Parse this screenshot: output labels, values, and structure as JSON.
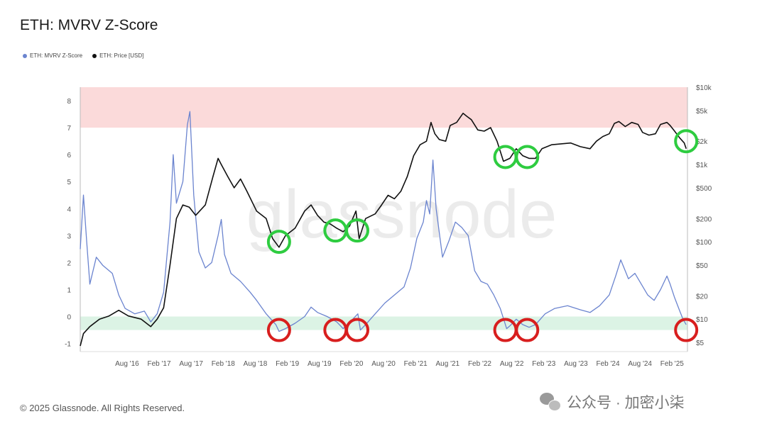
{
  "title": "ETH: MVRV Z-Score",
  "legend": [
    {
      "label": "ETH: MVRV Z-Score",
      "color": "#6b84cf"
    },
    {
      "label": "ETH: Price [USD]",
      "color": "#111111"
    }
  ],
  "footer": "© 2025 Glassnode. All Rights Reserved.",
  "watermark": "glassnode",
  "wechat_label": "公众号 · 加密小柒",
  "colors": {
    "zscore": "#6b84cf",
    "price": "#111111",
    "red_band": "#fbdada",
    "green_band": "#dcf3e5",
    "green_circle": "#2ecc40",
    "red_circle": "#d81e1e"
  },
  "chart_data": {
    "type": "line",
    "title": "ETH: MVRV Z-Score",
    "x_ticks": [
      "Aug '16",
      "Feb '17",
      "Aug '17",
      "Feb '18",
      "Aug '18",
      "Feb '19",
      "Aug '19",
      "Feb '20",
      "Aug '20",
      "Feb '21",
      "Aug '21",
      "Feb '22",
      "Aug '22",
      "Feb '23",
      "Aug '23",
      "Feb '24",
      "Aug '24",
      "Feb '25"
    ],
    "x_range": [
      2015.85,
      2025.32
    ],
    "y_left": {
      "ticks": [
        -1,
        0,
        1,
        2,
        3,
        4,
        5,
        6,
        7,
        8
      ],
      "range": [
        -1.3,
        8.5
      ]
    },
    "y_right": {
      "scale": "log",
      "ticks": [
        "$5",
        "$10",
        "$20",
        "$50",
        "$100",
        "$200",
        "$500",
        "$1k",
        "$2k",
        "$5k",
        "$10k"
      ],
      "tick_values": [
        5,
        10,
        20,
        50,
        100,
        200,
        500,
        1000,
        2000,
        5000,
        10000
      ],
      "range": [
        3.8,
        10000
      ]
    },
    "bands": [
      {
        "from": 7,
        "to": 8.5,
        "color": "#fbdada"
      },
      {
        "from": -0.5,
        "to": 0,
        "color": "#dcf3e5"
      }
    ],
    "series": [
      {
        "name": "ETH: MVRV Z-Score",
        "axis": "left",
        "points": [
          [
            2015.85,
            2.5
          ],
          [
            2015.9,
            4.5
          ],
          [
            2015.95,
            2.8
          ],
          [
            2016.0,
            1.2
          ],
          [
            2016.1,
            2.2
          ],
          [
            2016.2,
            1.9
          ],
          [
            2016.35,
            1.6
          ],
          [
            2016.45,
            0.8
          ],
          [
            2016.55,
            0.3
          ],
          [
            2016.7,
            0.1
          ],
          [
            2016.85,
            0.2
          ],
          [
            2016.95,
            -0.2
          ],
          [
            2017.05,
            0.1
          ],
          [
            2017.15,
            0.9
          ],
          [
            2017.25,
            3.5
          ],
          [
            2017.3,
            6.0
          ],
          [
            2017.35,
            4.2
          ],
          [
            2017.45,
            5.0
          ],
          [
            2017.52,
            7.1
          ],
          [
            2017.56,
            7.6
          ],
          [
            2017.62,
            4.5
          ],
          [
            2017.7,
            2.4
          ],
          [
            2017.8,
            1.8
          ],
          [
            2017.9,
            2.0
          ],
          [
            2018.0,
            3.0
          ],
          [
            2018.05,
            3.6
          ],
          [
            2018.1,
            2.3
          ],
          [
            2018.2,
            1.6
          ],
          [
            2018.35,
            1.3
          ],
          [
            2018.5,
            0.9
          ],
          [
            2018.6,
            0.6
          ],
          [
            2018.75,
            0.1
          ],
          [
            2018.9,
            -0.3
          ],
          [
            2018.95,
            -0.55
          ],
          [
            2019.05,
            -0.45
          ],
          [
            2019.2,
            -0.25
          ],
          [
            2019.35,
            0.0
          ],
          [
            2019.45,
            0.35
          ],
          [
            2019.55,
            0.15
          ],
          [
            2019.7,
            0.0
          ],
          [
            2019.85,
            -0.2
          ],
          [
            2019.95,
            -0.45
          ],
          [
            2020.1,
            -0.1
          ],
          [
            2020.18,
            0.1
          ],
          [
            2020.22,
            -0.5
          ],
          [
            2020.3,
            -0.3
          ],
          [
            2020.45,
            0.1
          ],
          [
            2020.6,
            0.5
          ],
          [
            2020.75,
            0.8
          ],
          [
            2020.9,
            1.1
          ],
          [
            2021.0,
            1.8
          ],
          [
            2021.1,
            2.9
          ],
          [
            2021.2,
            3.5
          ],
          [
            2021.25,
            4.3
          ],
          [
            2021.3,
            3.8
          ],
          [
            2021.35,
            5.8
          ],
          [
            2021.4,
            4.0
          ],
          [
            2021.5,
            2.2
          ],
          [
            2021.6,
            2.8
          ],
          [
            2021.7,
            3.5
          ],
          [
            2021.8,
            3.3
          ],
          [
            2021.9,
            3.0
          ],
          [
            2022.0,
            1.7
          ],
          [
            2022.1,
            1.3
          ],
          [
            2022.2,
            1.2
          ],
          [
            2022.3,
            0.8
          ],
          [
            2022.4,
            0.3
          ],
          [
            2022.5,
            -0.45
          ],
          [
            2022.55,
            -0.35
          ],
          [
            2022.65,
            -0.1
          ],
          [
            2022.75,
            -0.3
          ],
          [
            2022.85,
            -0.4
          ],
          [
            2022.95,
            -0.3
          ],
          [
            2023.1,
            0.1
          ],
          [
            2023.25,
            0.3
          ],
          [
            2023.45,
            0.4
          ],
          [
            2023.65,
            0.25
          ],
          [
            2023.8,
            0.15
          ],
          [
            2023.95,
            0.4
          ],
          [
            2024.1,
            0.8
          ],
          [
            2024.2,
            1.5
          ],
          [
            2024.28,
            2.1
          ],
          [
            2024.4,
            1.4
          ],
          [
            2024.5,
            1.6
          ],
          [
            2024.6,
            1.2
          ],
          [
            2024.7,
            0.8
          ],
          [
            2024.8,
            0.6
          ],
          [
            2024.9,
            1.0
          ],
          [
            2025.0,
            1.5
          ],
          [
            2025.05,
            1.2
          ],
          [
            2025.12,
            0.7
          ],
          [
            2025.2,
            0.2
          ],
          [
            2025.25,
            -0.1
          ],
          [
            2025.3,
            -0.3
          ]
        ]
      },
      {
        "name": "ETH: Price [USD]",
        "axis": "right",
        "points": [
          [
            2015.85,
            4.5
          ],
          [
            2015.9,
            6.5
          ],
          [
            2016.0,
            8.0
          ],
          [
            2016.15,
            10.0
          ],
          [
            2016.3,
            11.0
          ],
          [
            2016.45,
            13.0
          ],
          [
            2016.6,
            11.0
          ],
          [
            2016.8,
            10.0
          ],
          [
            2016.95,
            8.0
          ],
          [
            2017.05,
            10.0
          ],
          [
            2017.15,
            14.0
          ],
          [
            2017.25,
            50.0
          ],
          [
            2017.35,
            200.0
          ],
          [
            2017.45,
            300.0
          ],
          [
            2017.55,
            280.0
          ],
          [
            2017.65,
            220.0
          ],
          [
            2017.8,
            300.0
          ],
          [
            2017.92,
            700.0
          ],
          [
            2018.0,
            1200.0
          ],
          [
            2018.05,
            1000.0
          ],
          [
            2018.15,
            700.0
          ],
          [
            2018.25,
            500.0
          ],
          [
            2018.35,
            650.0
          ],
          [
            2018.45,
            450.0
          ],
          [
            2018.6,
            250.0
          ],
          [
            2018.75,
            200.0
          ],
          [
            2018.85,
            110.0
          ],
          [
            2018.95,
            85.0
          ],
          [
            2019.05,
            120.0
          ],
          [
            2019.2,
            150.0
          ],
          [
            2019.35,
            250.0
          ],
          [
            2019.45,
            300.0
          ],
          [
            2019.55,
            220.0
          ],
          [
            2019.65,
            180.0
          ],
          [
            2019.75,
            170.0
          ],
          [
            2019.85,
            150.0
          ],
          [
            2019.95,
            135.0
          ],
          [
            2020.05,
            160.0
          ],
          [
            2020.15,
            250.0
          ],
          [
            2020.2,
            110.0
          ],
          [
            2020.3,
            200.0
          ],
          [
            2020.45,
            230.0
          ],
          [
            2020.55,
            300.0
          ],
          [
            2020.65,
            400.0
          ],
          [
            2020.75,
            360.0
          ],
          [
            2020.85,
            450.0
          ],
          [
            2020.95,
            700.0
          ],
          [
            2021.05,
            1300.0
          ],
          [
            2021.15,
            1800.0
          ],
          [
            2021.25,
            2000.0
          ],
          [
            2021.32,
            3500.0
          ],
          [
            2021.38,
            2500.0
          ],
          [
            2021.45,
            2100.0
          ],
          [
            2021.55,
            2000.0
          ],
          [
            2021.62,
            3200.0
          ],
          [
            2021.72,
            3500.0
          ],
          [
            2021.82,
            4600.0
          ],
          [
            2021.88,
            4200.0
          ],
          [
            2021.95,
            3800.0
          ],
          [
            2022.05,
            2800.0
          ],
          [
            2022.15,
            2700.0
          ],
          [
            2022.25,
            3000.0
          ],
          [
            2022.35,
            2000.0
          ],
          [
            2022.45,
            1100.0
          ],
          [
            2022.55,
            1200.0
          ],
          [
            2022.65,
            1600.0
          ],
          [
            2022.75,
            1300.0
          ],
          [
            2022.85,
            1200.0
          ],
          [
            2022.95,
            1200.0
          ],
          [
            2023.05,
            1600.0
          ],
          [
            2023.2,
            1800.0
          ],
          [
            2023.35,
            1850.0
          ],
          [
            2023.5,
            1900.0
          ],
          [
            2023.65,
            1700.0
          ],
          [
            2023.8,
            1600.0
          ],
          [
            2023.9,
            2000.0
          ],
          [
            2024.0,
            2300.0
          ],
          [
            2024.1,
            2500.0
          ],
          [
            2024.18,
            3400.0
          ],
          [
            2024.25,
            3600.0
          ],
          [
            2024.35,
            3100.0
          ],
          [
            2024.45,
            3500.0
          ],
          [
            2024.55,
            3300.0
          ],
          [
            2024.62,
            2600.0
          ],
          [
            2024.72,
            2400.0
          ],
          [
            2024.82,
            2500.0
          ],
          [
            2024.9,
            3300.0
          ],
          [
            2025.0,
            3500.0
          ],
          [
            2025.05,
            3200.0
          ],
          [
            2025.12,
            2700.0
          ],
          [
            2025.2,
            2200.0
          ],
          [
            2025.27,
            1900.0
          ],
          [
            2025.3,
            1600.0
          ]
        ]
      }
    ],
    "highlight_circles": [
      {
        "date": 2018.95,
        "value": 100,
        "axis": "right",
        "color": "green"
      },
      {
        "date": 2019.83,
        "value": 140,
        "axis": "right",
        "color": "green"
      },
      {
        "date": 2020.17,
        "value": 140,
        "axis": "right",
        "color": "green"
      },
      {
        "date": 2022.48,
        "value": 1250,
        "axis": "right",
        "color": "green"
      },
      {
        "date": 2022.82,
        "value": 1250,
        "axis": "right",
        "color": "green"
      },
      {
        "date": 2025.3,
        "value": 2000,
        "axis": "right",
        "color": "green"
      },
      {
        "date": 2018.95,
        "value": -0.5,
        "axis": "left",
        "color": "red"
      },
      {
        "date": 2019.83,
        "value": -0.5,
        "axis": "left",
        "color": "red"
      },
      {
        "date": 2020.17,
        "value": -0.5,
        "axis": "left",
        "color": "red"
      },
      {
        "date": 2022.48,
        "value": -0.5,
        "axis": "left",
        "color": "red"
      },
      {
        "date": 2022.82,
        "value": -0.5,
        "axis": "left",
        "color": "red"
      },
      {
        "date": 2025.3,
        "value": -0.5,
        "axis": "left",
        "color": "red"
      }
    ]
  }
}
